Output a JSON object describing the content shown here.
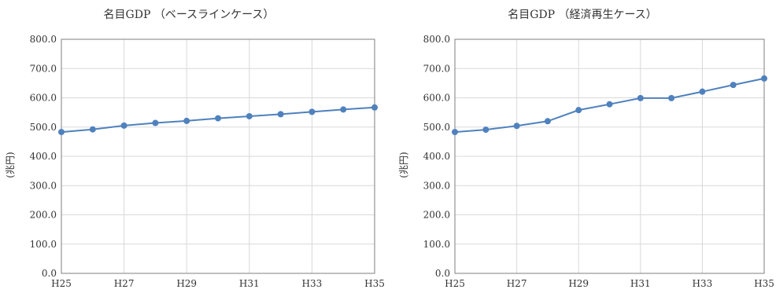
{
  "chart_data": [
    {
      "type": "line",
      "title": "名目GDP （ベースラインケース）",
      "ylabel": "(兆円)",
      "xlabel": "",
      "x": [
        "H25",
        "H26",
        "H27",
        "H28",
        "H29",
        "H30",
        "H31",
        "H32",
        "H33",
        "H34",
        "H35"
      ],
      "xtick_labels": [
        "H25",
        "H27",
        "H29",
        "H31",
        "H33",
        "H35"
      ],
      "ytick_labels": [
        "0.0",
        "100.0",
        "200.0",
        "300.0",
        "400.0",
        "500.0",
        "600.0",
        "700.0",
        "800.0"
      ],
      "ylim": [
        0,
        800
      ],
      "grid": true,
      "series": [
        {
          "color": "#4f81bd",
          "values": [
            483,
            492,
            505,
            514,
            521,
            530,
            537,
            544,
            552,
            560,
            567
          ]
        }
      ]
    },
    {
      "type": "line",
      "title": "名目GDP （経済再生ケース）",
      "ylabel": "(兆円)",
      "xlabel": "",
      "x": [
        "H25",
        "H26",
        "H27",
        "H28",
        "H29",
        "H30",
        "H31",
        "H32",
        "H33",
        "H34",
        "H35"
      ],
      "xtick_labels": [
        "H25",
        "H27",
        "H29",
        "H31",
        "H33",
        "H35"
      ],
      "ytick_labels": [
        "0.0",
        "100.0",
        "200.0",
        "300.0",
        "400.0",
        "500.0",
        "600.0",
        "700.0",
        "800.0"
      ],
      "ylim": [
        0,
        800
      ],
      "grid": true,
      "series": [
        {
          "color": "#4f81bd",
          "values": [
            483,
            491,
            504,
            520,
            558,
            578,
            599,
            599,
            621,
            644,
            666
          ]
        }
      ]
    }
  ]
}
